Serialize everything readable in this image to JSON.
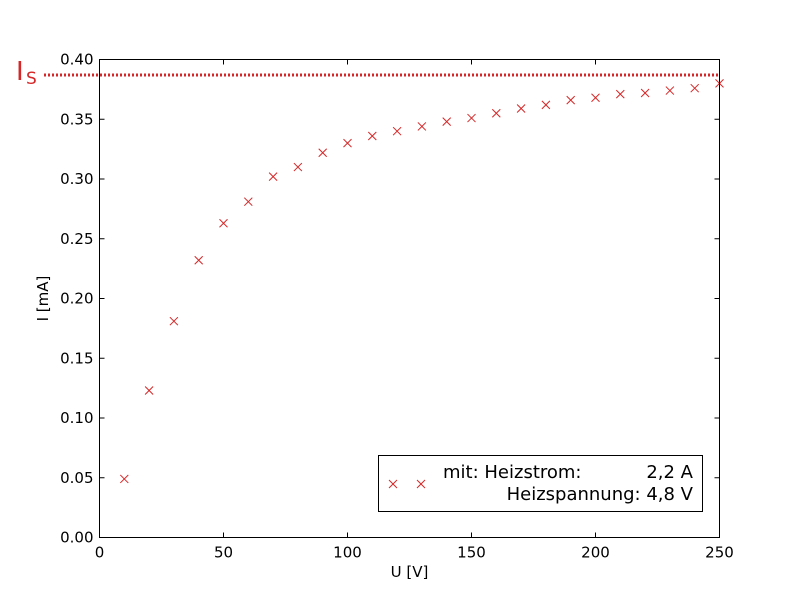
{
  "chart_data": {
    "type": "scatter",
    "xlabel": "U [V]",
    "ylabel": "I [mA]",
    "xlim": [
      0,
      250
    ],
    "ylim": [
      0,
      0.4
    ],
    "xticks": [
      0,
      50,
      100,
      150,
      200,
      250
    ],
    "yticks": [
      0.0,
      0.05,
      0.1,
      0.15,
      0.2,
      0.25,
      0.3,
      0.35,
      0.4
    ],
    "grid": false,
    "legend_position": "lower-right",
    "marker": "x",
    "series_color": "#d62728",
    "series": [
      {
        "name": "mit: Heizstrom: 2,2 A Heizspannung: 4,8 V",
        "x": [
          10,
          20,
          30,
          40,
          50,
          60,
          70,
          80,
          90,
          100,
          110,
          120,
          130,
          140,
          150,
          160,
          170,
          180,
          190,
          200,
          210,
          220,
          230,
          240,
          250
        ],
        "y": [
          0.049,
          0.123,
          0.181,
          0.232,
          0.263,
          0.281,
          0.302,
          0.31,
          0.322,
          0.33,
          0.336,
          0.34,
          0.344,
          0.348,
          0.351,
          0.355,
          0.359,
          0.362,
          0.366,
          0.368,
          0.371,
          0.372,
          0.374,
          0.376,
          0.38
        ]
      }
    ],
    "saturation_line": {
      "value": 0.387,
      "label_main": "I",
      "label_sub": "S",
      "style": "dotted",
      "color": "#d62728"
    },
    "legend": {
      "line1_left": "mit: Heizstrom:",
      "line1_right": "2,2 A",
      "line2": "Heizspannung: 4,8 V"
    }
  }
}
